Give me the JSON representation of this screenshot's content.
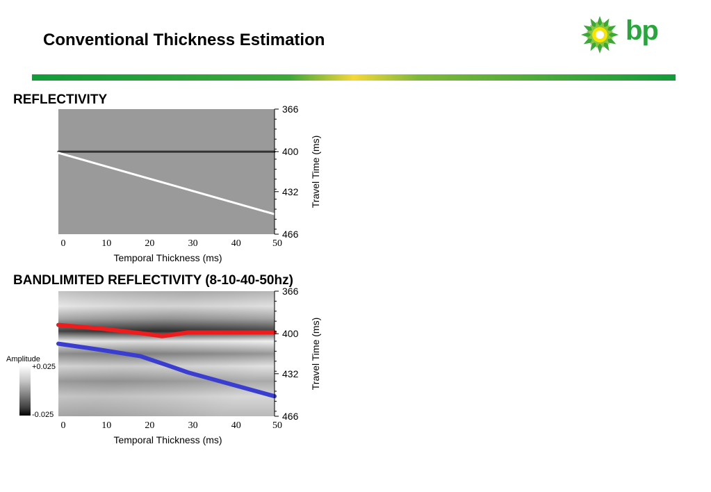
{
  "page": {
    "title": "Conventional Thickness Estimation",
    "logo_text": "bp",
    "colors": {
      "brand_green": "#27a73b",
      "brand_yellow": "#f5d73a",
      "red_trace": "#ee1c1c",
      "blue_trace": "#3a3ed0"
    }
  },
  "colorbar": {
    "title": "Amplitude",
    "max_label": "+0.025",
    "min_label": "-0.025"
  },
  "chart_data": [
    {
      "type": "heatmap",
      "title": "REFLECTIVITY",
      "xlabel": "Temporal Thickness (ms)",
      "ylabel": "Travel Time (ms)",
      "xlim": [
        0,
        50
      ],
      "ylim": [
        466,
        366
      ],
      "x_ticks": [
        "0",
        "10",
        "20",
        "30",
        "40",
        "50"
      ],
      "y_ticks": [
        "366",
        "400",
        "432",
        "466"
      ],
      "series": [
        {
          "name": "",
          "color": "#333333",
          "x": [
            0,
            50
          ],
          "y": [
            400,
            400
          ]
        },
        {
          "name": "",
          "color": "#ffffff",
          "x": [
            0,
            50
          ],
          "y": [
            401,
            450
          ]
        }
      ]
    },
    {
      "type": "heatmap",
      "title": "BANDLIMITED REFLECTIVITY (8-10-40-50hz)",
      "xlabel": "Temporal Thickness (ms)",
      "ylabel": "Travel Time (ms)",
      "xlim": [
        0,
        50
      ],
      "ylim": [
        466,
        366
      ],
      "x_ticks": [
        "0",
        "10",
        "20",
        "30",
        "40",
        "50"
      ],
      "y_ticks": [
        "366",
        "400",
        "432",
        "466"
      ],
      "series": [
        {
          "name": "",
          "color": "#ee1c1c",
          "x": [
            0,
            10,
            20,
            24,
            30,
            50
          ],
          "y": [
            393,
            396,
            400,
            402,
            399,
            399
          ]
        },
        {
          "name": "",
          "color": "#3a3ed0",
          "x": [
            0,
            10,
            19,
            25,
            30,
            50
          ],
          "y": [
            408,
            413,
            418,
            425,
            431,
            450
          ]
        }
      ]
    }
  ]
}
